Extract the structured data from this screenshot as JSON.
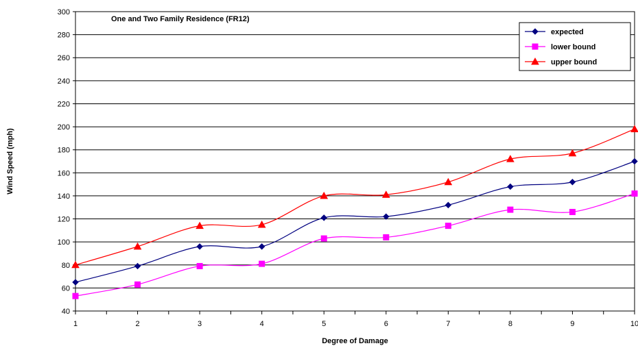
{
  "chart_data": {
    "type": "line",
    "title": "One and Two Family Residence (FR12)",
    "xlabel": "Degree of Damage",
    "ylabel": "Wind Speed (mph)",
    "categories": [
      "1",
      "2",
      "3",
      "4",
      "5",
      "6",
      "7",
      "8",
      "9",
      "10"
    ],
    "x": [
      1,
      2,
      3,
      4,
      5,
      6,
      7,
      8,
      9,
      10
    ],
    "xlim": [
      1,
      10
    ],
    "ylim": [
      40,
      300
    ],
    "yticks": [
      40,
      60,
      80,
      100,
      120,
      140,
      160,
      180,
      200,
      220,
      240,
      260,
      280,
      300
    ],
    "grid": "horizontal",
    "legend_position": "top-right",
    "series": [
      {
        "name": "expected",
        "color": "#000080",
        "marker": "diamond",
        "values": [
          65,
          79,
          96,
          96,
          121,
          122,
          132,
          148,
          152,
          170
        ]
      },
      {
        "name": "lower bound",
        "color": "#FF00FF",
        "marker": "square",
        "values": [
          53,
          63,
          79,
          81,
          103,
          104,
          114,
          128,
          126,
          142
        ]
      },
      {
        "name": "upper bound",
        "color": "#FF0000",
        "marker": "triangle",
        "values": [
          80,
          96,
          114,
          115,
          140,
          141,
          152,
          172,
          177,
          198
        ]
      }
    ]
  }
}
